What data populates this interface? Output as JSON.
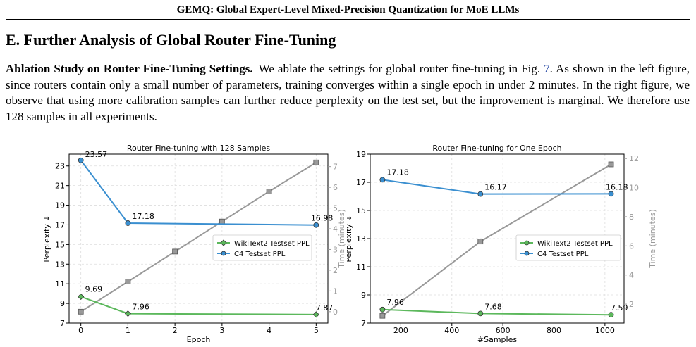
{
  "header": {
    "title": "GEMQ: Global Expert-Level Mixed-Precision Quantization for MoE LLMs"
  },
  "section": {
    "title": "E. Further Analysis of Global Router Fine-Tuning"
  },
  "paragraph": {
    "lead": "Ablation Study on Router Fine-Tuning Settings.",
    "text_before_ref": "We ablate the settings for global router fine-tuning in Fig. ",
    "ref": "7",
    "text_after_ref": ". As shown in the left figure, since routers contain only a small number of parameters, training converges within a single epoch in under 2 minutes. In the right figure, we observe that using more calibration samples can further reduce perplexity on the test set, but the improvement is marginal. We therefore use 128 samples in all experiments."
  },
  "colors": {
    "green": "#5cb85c",
    "blue": "#3a8fd0",
    "gray": "#999999"
  },
  "chart_data": [
    {
      "type": "line",
      "title": "Router Fine-tuning with 128 Samples",
      "xlabel": "Epoch",
      "ylabel": "Perplexity ↓",
      "y2label": "Time (minutes)",
      "x": [
        0,
        1,
        5
      ],
      "xlim": [
        -0.25,
        5.25
      ],
      "xticks": [
        0,
        1,
        2,
        3,
        4,
        5
      ],
      "ylim": [
        7,
        24.2
      ],
      "yticks": [
        7,
        9,
        11,
        13,
        15,
        17,
        19,
        21,
        23
      ],
      "y2lim": [
        -0.55,
        7.6
      ],
      "y2ticks": [
        0,
        1,
        2,
        3,
        4,
        5,
        6,
        7
      ],
      "grid": true,
      "legend": "center-right",
      "series": [
        {
          "name": "WikiText2 Testset PPL",
          "color": "#5cb85c",
          "marker": "diamond",
          "values": [
            9.69,
            7.96,
            7.87
          ],
          "labels": [
            "9.69",
            "7.96",
            "7.87"
          ]
        },
        {
          "name": "C4 Testset PPL",
          "color": "#3a8fd0",
          "marker": "circle",
          "values": [
            23.57,
            17.18,
            16.98
          ],
          "labels": [
            "23.57",
            "17.18",
            "16.98"
          ]
        }
      ],
      "time_series": {
        "color": "#999999",
        "marker": "square",
        "x": [
          0,
          1,
          2,
          3,
          4,
          5
        ],
        "values": [
          0.0,
          1.45,
          2.9,
          4.35,
          5.8,
          7.2
        ]
      }
    },
    {
      "type": "line",
      "title": "Router Fine-tuning for One Epoch",
      "xlabel": "#Samples",
      "ylabel": "Perplexity ↓",
      "y2label": "Time (minutes)",
      "x": [
        128,
        512,
        1024
      ],
      "xlim": [
        80,
        1075
      ],
      "xticks": [
        200,
        400,
        600,
        800,
        1000
      ],
      "ylim": [
        7,
        19
      ],
      "yticks": [
        7,
        9,
        11,
        13,
        15,
        17,
        19
      ],
      "y2lim": [
        0.7,
        12.3
      ],
      "y2ticks": [
        2,
        4,
        6,
        8,
        10,
        12
      ],
      "grid": true,
      "legend": "center-right",
      "series": [
        {
          "name": "WikiText2 Testset PPL",
          "color": "#5cb85c",
          "marker": "circle",
          "values": [
            7.96,
            7.68,
            7.59
          ],
          "labels": [
            "7.96",
            "7.68",
            "7.59"
          ]
        },
        {
          "name": "C4 Testset PPL",
          "color": "#3a8fd0",
          "marker": "circle",
          "values": [
            17.18,
            16.17,
            16.18
          ],
          "labels": [
            "17.18",
            "16.17",
            "16.18"
          ]
        }
      ],
      "time_series": {
        "color": "#999999",
        "marker": "square",
        "x": [
          128,
          512,
          1024
        ],
        "values": [
          1.2,
          6.3,
          11.6
        ]
      }
    }
  ]
}
